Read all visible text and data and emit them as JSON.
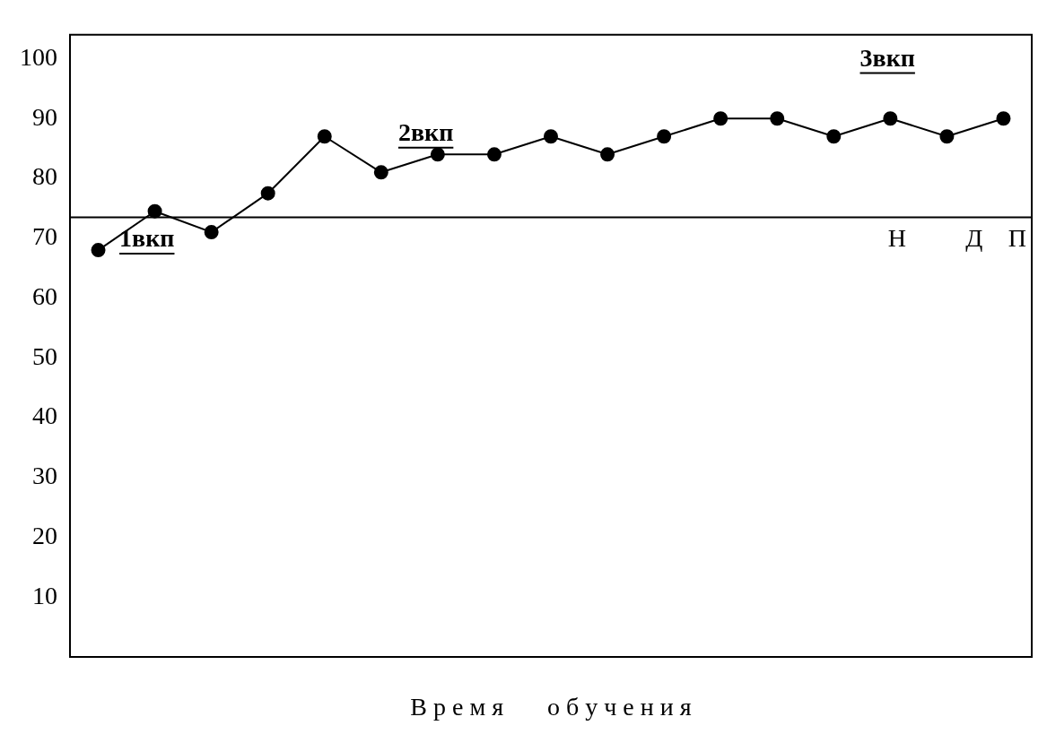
{
  "chart_data": {
    "type": "line",
    "xlabel": "В р е м я       о б у ч е н и я",
    "categories": [
      null,
      null,
      null,
      null,
      null,
      null,
      null,
      null,
      null,
      null,
      null,
      null,
      null,
      null,
      null,
      null,
      null
    ],
    "series": [
      {
        "color": "#000000",
        "values": [
          68,
          74.5,
          71,
          77.5,
          87,
          81,
          84,
          84,
          87,
          84,
          87,
          90,
          90,
          87,
          90,
          87,
          90
        ]
      }
    ],
    "ylim": [
      0,
      104
    ],
    "yticks": [
      10,
      20,
      30,
      40,
      50,
      60,
      70,
      80,
      90,
      100
    ],
    "ref_lines": [
      {
        "axis": "y",
        "value": 73.5,
        "color": "#000000"
      }
    ],
    "annotations": [
      "1вкп",
      "2вкп",
      "3вкп",
      "Н",
      "Д",
      "П"
    ],
    "grid": false,
    "legend": false,
    "marker": "circle",
    "line_style": "solid"
  }
}
